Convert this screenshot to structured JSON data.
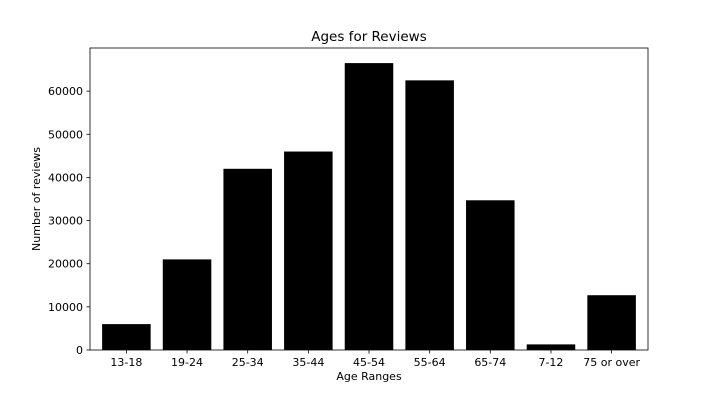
{
  "chart_data": {
    "type": "bar",
    "title": "Ages for Reviews",
    "xlabel": "Age Ranges",
    "ylabel": "Number of reviews",
    "categories": [
      "13-18",
      "19-24",
      "25-34",
      "35-44",
      "45-54",
      "55-64",
      "65-74",
      "7-12",
      "75 or over"
    ],
    "values": [
      6000,
      21000,
      42000,
      46000,
      66500,
      62500,
      34700,
      1300,
      12700
    ],
    "ylim": [
      0,
      70000
    ],
    "yticks": [
      0,
      10000,
      20000,
      30000,
      40000,
      50000,
      60000
    ],
    "grid": false,
    "bar_color": "#000000"
  }
}
